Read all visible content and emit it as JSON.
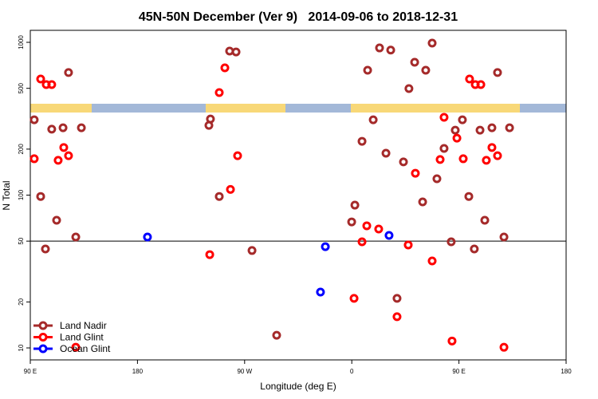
{
  "chart_data": {
    "type": "scatter",
    "title": "45N-50N December (Ver 9)   2014-09-06 to 2018-12-31",
    "x_label": "Longitude (deg E)",
    "y_label": "N Total",
    "xlim": [
      90,
      540
    ],
    "ylim": [
      8.35,
      1198
    ],
    "log_y": true,
    "xticks": [
      {
        "value": 90,
        "label": "90 E"
      },
      180,
      {
        "value": 270,
        "label": "90 W"
      },
      {
        "value": 360,
        "label": "0"
      },
      {
        "value": 450,
        "label": "90 E"
      },
      {
        "value": 540,
        "label": "180"
      }
    ],
    "yticks": [
      10,
      20,
      50,
      100,
      200,
      500,
      1000
    ],
    "reference_line": 50,
    "legend": "bottom-left",
    "series": [
      {
        "name": "Land Nadir",
        "color": "#a52a2a",
        "x": [
          93.3,
          98.7,
          102.7,
          108,
          112.1,
          117.5,
          122.1,
          128.2,
          132.9,
          240,
          241.3,
          248.7,
          257.4,
          262.8,
          276.2,
          296.9,
          359.9,
          362.6,
          368.6,
          373.3,
          378,
          383.3,
          388.7,
          392.7,
          398,
          403.4,
          408,
          412.8,
          419.5,
          422.1,
          427.5,
          431.5,
          437.5,
          443.5,
          446.9,
          452.9,
          458.3,
          462.9,
          467.7,
          471.7,
          477.7,
          482.4,
          487.8,
          492.5
        ],
        "values": [
          311,
          98,
          44.4,
          270,
          68.5,
          276,
          634,
          53.2,
          276,
          286,
          315,
          98,
          876,
          865,
          43.4,
          12.1,
          66.8,
          86,
          225,
          657,
          311,
          919,
          188,
          890,
          21.1,
          165,
          498,
          741,
          90.3,
          657,
          988,
          128,
          202,
          49.5,
          266,
          311,
          98,
          44.4,
          266,
          68.5,
          276,
          634,
          53.2,
          276
        ]
      },
      {
        "name": "Land Glint",
        "color": "#ff0000",
        "x": [
          93.3,
          98.7,
          103.4,
          108,
          113.4,
          118.1,
          122.1,
          128.2,
          240.7,
          248.7,
          253.4,
          258.1,
          264.1,
          361.9,
          368.6,
          372.6,
          382.6,
          398,
          407.4,
          413.4,
          427.5,
          434.2,
          437.5,
          444.2,
          448.3,
          453.6,
          458.9,
          463.7,
          468.4,
          473,
          477.7,
          482.4,
          487.8
        ],
        "values": [
          173,
          575,
          529,
          529,
          169,
          205,
          181,
          10.1,
          40.8,
          469,
          681,
          109,
          181,
          21.1,
          49.5,
          63,
          60,
          16,
          47.2,
          139,
          37.1,
          171,
          323,
          11.1,
          236,
          173,
          575,
          529,
          529,
          169,
          205,
          181,
          10.1
        ]
      },
      {
        "name": "Ocean Glint",
        "color": "#0000ff",
        "x": [
          188.4,
          333.7,
          337.8,
          391.3
        ],
        "values": [
          53.2,
          23.2,
          46,
          54.5
        ]
      }
    ]
  }
}
